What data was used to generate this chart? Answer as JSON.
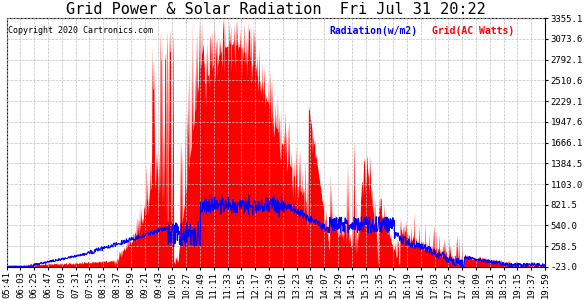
{
  "title": "Grid Power & Solar Radiation  Fri Jul 31 20:22",
  "copyright": "Copyright 2020 Cartronics.com",
  "legend_radiation": "Radiation(w/m2)",
  "legend_grid": "Grid(AC Watts)",
  "ylabel_right_values": [
    3355.1,
    3073.6,
    2792.1,
    2510.6,
    2229.1,
    1947.6,
    1666.1,
    1384.5,
    1103.0,
    821.5,
    540.0,
    258.5,
    -23.0
  ],
  "ymin": -23.0,
  "ymax": 3355.1,
  "background_color": "#ffffff",
  "plot_bg_color": "#ffffff",
  "grid_color": "#c0c0c0",
  "radiation_color": "#0000ff",
  "grid_power_color": "#ff0000",
  "title_fontsize": 11,
  "tick_fontsize": 6.5,
  "x_tick_labels": [
    "05:41",
    "06:03",
    "06:25",
    "06:47",
    "07:09",
    "07:31",
    "07:53",
    "08:15",
    "08:37",
    "08:59",
    "09:21",
    "09:43",
    "10:05",
    "10:27",
    "10:49",
    "11:11",
    "11:33",
    "11:55",
    "12:17",
    "12:39",
    "13:01",
    "13:23",
    "13:45",
    "14:07",
    "14:29",
    "14:51",
    "15:13",
    "15:35",
    "15:57",
    "16:19",
    "16:41",
    "17:03",
    "17:25",
    "17:47",
    "18:09",
    "18:31",
    "18:53",
    "19:15",
    "19:37",
    "19:59"
  ]
}
